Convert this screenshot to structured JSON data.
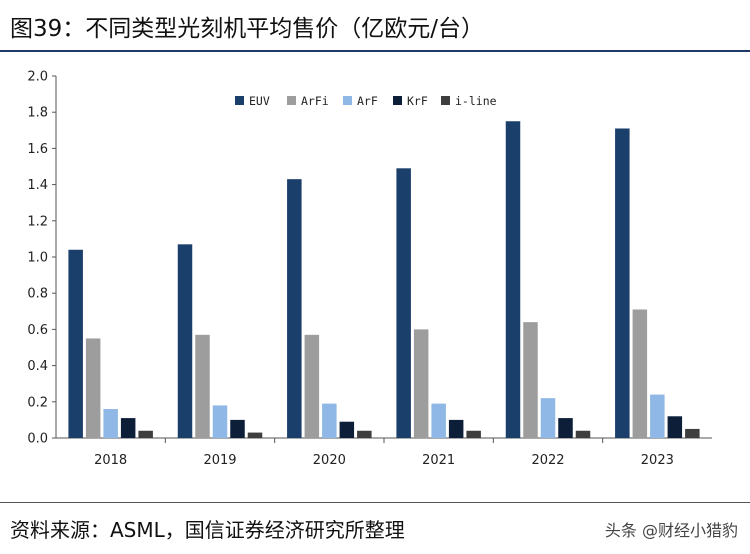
{
  "header": {
    "title": "图39：不同类型光刻机平均售价（亿欧元/台）"
  },
  "footer": {
    "source": "资料来源：ASML，国信证券经济研究所整理",
    "watermark": "头条 @财经小猎豹"
  },
  "chart_data": {
    "type": "bar",
    "title": "",
    "xlabel": "",
    "ylabel": "",
    "categories": [
      "2018",
      "2019",
      "2020",
      "2021",
      "2022",
      "2023"
    ],
    "ylim": [
      0,
      2.0
    ],
    "yticks": [
      "2.0",
      "1.8",
      "1.6",
      "1.4",
      "1.2",
      "1.0",
      "0.8",
      "0.6",
      "0.4",
      "0.2",
      "0.0"
    ],
    "grid": false,
    "legend_position": "top-center",
    "series": [
      {
        "name": "EUV",
        "color": "#1b3f6b",
        "values": [
          1.04,
          1.07,
          1.43,
          1.49,
          1.75,
          1.71
        ]
      },
      {
        "name": "ArFi",
        "color": "#9d9d9d",
        "values": [
          0.55,
          0.57,
          0.57,
          0.6,
          0.64,
          0.71
        ]
      },
      {
        "name": "ArF",
        "color": "#8fb8e6",
        "values": [
          0.16,
          0.18,
          0.19,
          0.19,
          0.22,
          0.24
        ]
      },
      {
        "name": "KrF",
        "color": "#0d1e38",
        "values": [
          0.11,
          0.1,
          0.09,
          0.1,
          0.11,
          0.12
        ]
      },
      {
        "name": "i-line",
        "color": "#3e3e3e",
        "values": [
          0.04,
          0.03,
          0.04,
          0.04,
          0.04,
          0.05
        ]
      }
    ]
  }
}
